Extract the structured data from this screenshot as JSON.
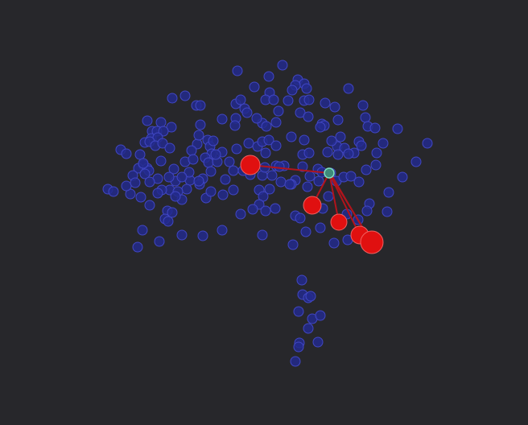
{
  "colors": {
    "background": "#27272b",
    "node_fill": "#232a8c",
    "node_stroke": "#4147c4",
    "highlight_node_fill": "#e01010",
    "highlight_node_stroke": "#f06060",
    "edge": "#b0141c",
    "selected_node_fill": "#3e8a7a",
    "selected_node_stroke": "#7fe0c0"
  },
  "graph": {
    "node_count": 224,
    "highlighted_node_count": 6,
    "selected_node_count": 1,
    "highlighted_edge_count": 6
  }
}
